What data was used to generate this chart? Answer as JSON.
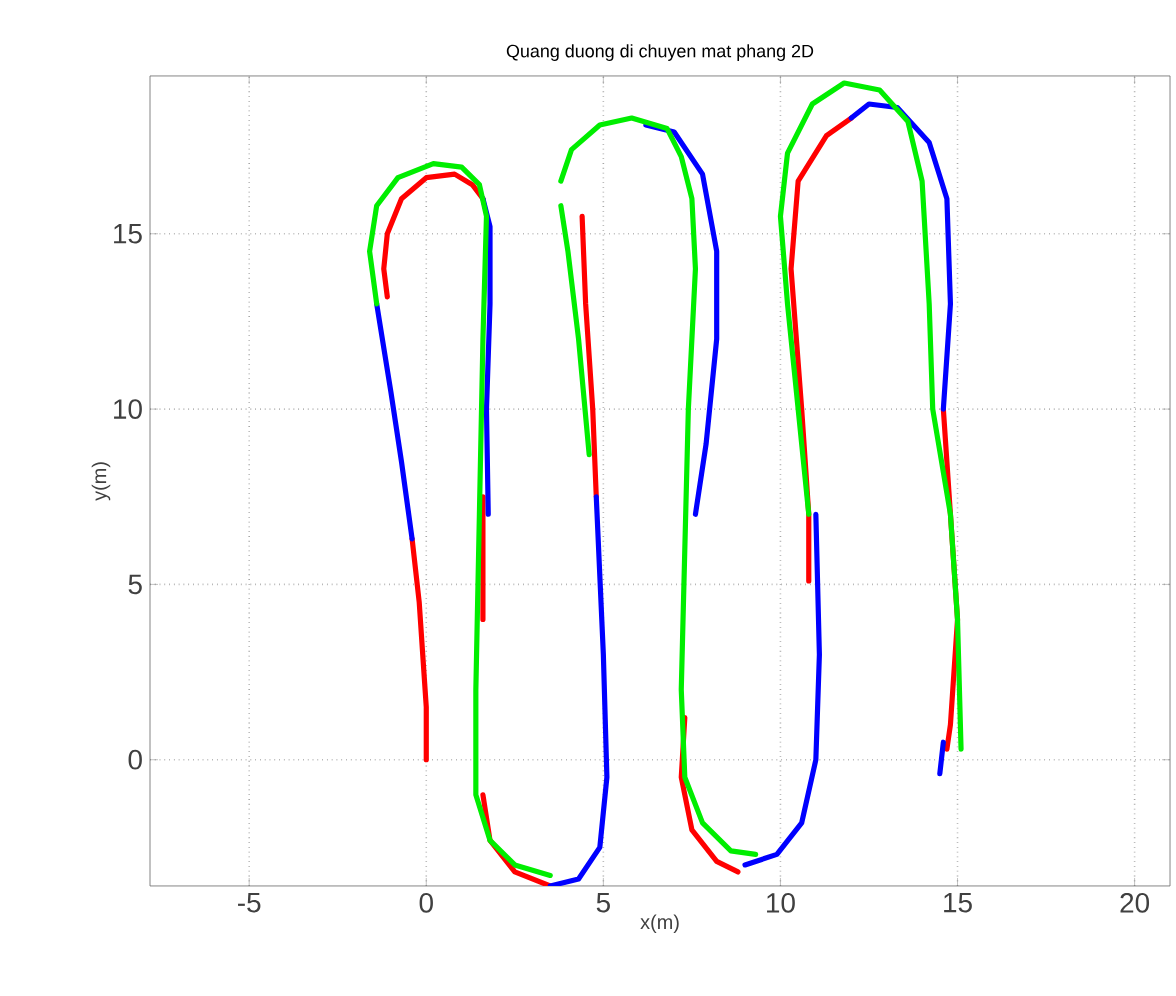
{
  "chart_data": {
    "type": "line",
    "title": "Quang duong di chuyen mat phang 2D",
    "xlabel": "x(m)",
    "ylabel": "y(m)",
    "xlim": [
      -7.8,
      21
    ],
    "ylim": [
      -3.6,
      19.5
    ],
    "xticks": [
      -5,
      0,
      5,
      10,
      15,
      20
    ],
    "yticks": [
      0,
      5,
      10,
      15
    ],
    "grid": true,
    "series": [
      {
        "color": "#ff0000",
        "x": [
          0,
          0,
          -0.1,
          -0.2,
          -0.4,
          null,
          -1.1,
          -1.2,
          -1.1,
          -0.7,
          0,
          0.8,
          1.3,
          1.6,
          null,
          1.6,
          1.6,
          null,
          1.6,
          1.8,
          2.5,
          3.5,
          null,
          4.8,
          4.7,
          4.5,
          4.4,
          null,
          7.3,
          7.2,
          7.5,
          8.2,
          8.8,
          null,
          10.8,
          10.8,
          10.6,
          10.3,
          10.5,
          11.3,
          12,
          null,
          14.6,
          14.8,
          15,
          14.8,
          14.7
        ],
        "values": [
          0,
          1.5,
          3,
          4.5,
          6.3,
          null,
          13.2,
          14,
          15,
          16,
          16.6,
          16.7,
          16.4,
          16,
          null,
          7.5,
          4,
          null,
          -1,
          -2.3,
          -3.2,
          -3.6,
          null,
          7.5,
          10,
          13,
          15.5,
          null,
          1.2,
          -0.5,
          -2,
          -2.9,
          -3.2,
          null,
          5.1,
          7,
          10,
          14,
          16.5,
          17.8,
          18.3,
          null,
          10,
          7,
          4,
          1,
          0.3
        ]
      },
      {
        "color": "#0000ff",
        "x": [
          -0.4,
          -0.7,
          -1,
          -1.4,
          null,
          1.6,
          1.8,
          1.8,
          1.7,
          1.75,
          null,
          3.5,
          4.3,
          4.9,
          5.1,
          5,
          4.8,
          null,
          6.2,
          7,
          7.8,
          8.2,
          8.2,
          7.9,
          7.6,
          null,
          9,
          9.9,
          10.6,
          11,
          11.1,
          11,
          null,
          12,
          12.5,
          13.3,
          14.2,
          14.7,
          14.8,
          14.6,
          null,
          14.6,
          14.5
        ],
        "values": [
          6.3,
          8.5,
          10.5,
          13,
          null,
          16,
          15.2,
          13,
          10,
          7,
          null,
          -3.6,
          -3.4,
          -2.5,
          -0.5,
          3,
          7.5,
          null,
          18.1,
          17.9,
          16.7,
          14.5,
          12,
          9,
          7,
          null,
          -3,
          -2.7,
          -1.8,
          0,
          3,
          7,
          null,
          18.3,
          18.7,
          18.6,
          17.6,
          16,
          13,
          10,
          null,
          0.5,
          -0.4
        ]
      },
      {
        "color": "#00ee00",
        "x": [
          -1.4,
          -1.6,
          -1.4,
          -0.8,
          0.2,
          1,
          1.5,
          1.7,
          1.6,
          1.5,
          1.4,
          1.4,
          1.8,
          2.5,
          3.5,
          null,
          4.6,
          4.3,
          4,
          3.8,
          null,
          3.8,
          4.1,
          4.9,
          5.8,
          6.8,
          7.2,
          7.5,
          7.6,
          7.4,
          7.3,
          7.2,
          7.3,
          7.8,
          8.6,
          9.3,
          null,
          10.8,
          10.5,
          10.2,
          10,
          10.2,
          10.9,
          11.8,
          12.8,
          13.6,
          14,
          14.2,
          14.3,
          14.8,
          15,
          15.1
        ],
        "values": [
          13,
          14.5,
          15.8,
          16.6,
          17,
          16.9,
          16.4,
          15.5,
          12,
          7,
          2,
          -1,
          -2.3,
          -3,
          -3.3,
          null,
          8.7,
          12,
          14.5,
          15.8,
          null,
          16.5,
          17.4,
          18.1,
          18.3,
          18,
          17.2,
          16,
          14,
          10,
          6,
          2,
          -0.5,
          -1.8,
          -2.6,
          -2.7,
          null,
          7,
          10,
          13,
          15.5,
          17.3,
          18.7,
          19.3,
          19.1,
          18.2,
          16.5,
          13,
          10,
          7,
          4,
          0.3
        ]
      }
    ]
  }
}
